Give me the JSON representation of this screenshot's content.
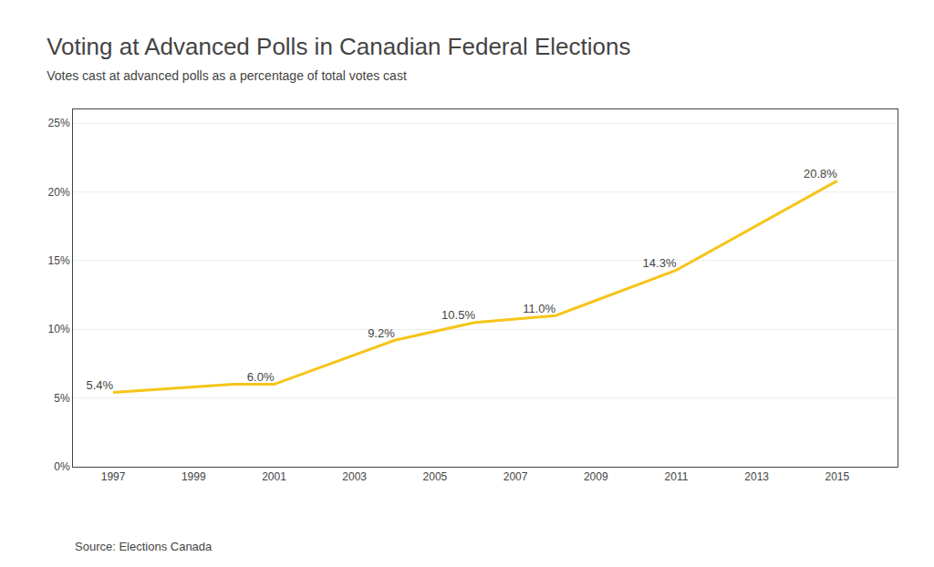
{
  "chart_data": {
    "type": "line",
    "title": "Voting at Advanced Polls in Canadian Federal Elections",
    "subtitle": "Votes cast at advanced polls as a percentage of total votes cast",
    "source": "Source: Elections Canada",
    "x": [
      1997,
      2000,
      2001,
      2004,
      2006,
      2008,
      2011,
      2015
    ],
    "values": [
      5.4,
      6.0,
      6.0,
      9.2,
      10.5,
      11.0,
      14.3,
      20.8
    ],
    "value_labels": [
      "5.4%",
      null,
      "6.0%",
      "9.2%",
      "10.5%",
      "11.0%",
      "14.3%",
      "20.8%"
    ],
    "data_labels": true,
    "color": "#F5C518",
    "xlim": [
      1996.0,
      2016.5
    ],
    "xticks": [
      1997,
      1999,
      2001,
      2003,
      2005,
      2007,
      2009,
      2011,
      2013,
      2015
    ],
    "ylim": [
      0,
      26
    ],
    "yticks": [
      {
        "value": 0,
        "label": "0%"
      },
      {
        "value": 5,
        "label": "5%"
      },
      {
        "value": 10,
        "label": "10%"
      },
      {
        "value": 15,
        "label": "15%"
      },
      {
        "value": 20,
        "label": "20%"
      },
      {
        "value": 25,
        "label": "25%"
      }
    ],
    "grid": "y"
  }
}
